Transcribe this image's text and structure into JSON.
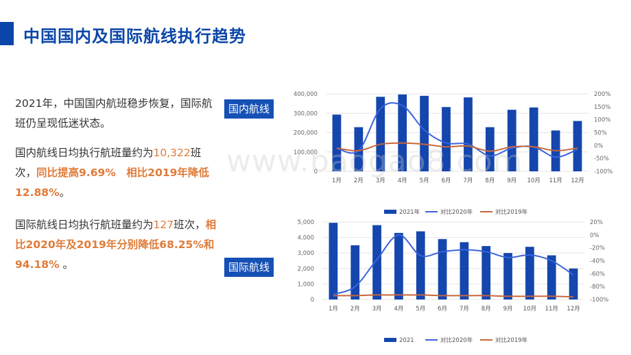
{
  "title": "中国国内及国际航线执行趋势",
  "paragraphs": {
    "p1": "2021年，中国国内航班稳步恢复，国际航班仍呈现低迷状态。",
    "p2_a": "国内航线日均执行航班量约为",
    "p2_num": "10,322",
    "p2_b": "班次，",
    "p2_hl": "同比提高9.69%　相比2019年降低12.88%",
    "p2_end": "。",
    "p3_a": "国际航线日均执行航班量约为",
    "p3_num": "127",
    "p3_b": "班次，",
    "p3_hl": "相比2020年及2019年分别降低68.25%和94.18%",
    "p3_end": " 。"
  },
  "labels": {
    "domestic": "国内航线",
    "international": "国际航线"
  },
  "watermark": "www.baogao8.com",
  "colors": {
    "bar": "#1446ad",
    "line_2020": "#3a63dc",
    "line_2019": "#c8653a",
    "title": "#0b46a8"
  },
  "chart_data": [
    {
      "type": "bar",
      "categories": [
        "1月",
        "2月",
        "3月",
        "4月",
        "5月",
        "6月",
        "7月",
        "8月",
        "9月",
        "10月",
        "11月",
        "12月"
      ],
      "ylim": [
        0,
        400000
      ],
      "yticks": [
        "0",
        "100,000",
        "200,000",
        "300,000",
        "400,000"
      ],
      "y2lim": [
        -100,
        200
      ],
      "y2ticks": [
        "-100%",
        "-50%",
        "0%",
        "50%",
        "100%",
        "150%",
        "200%"
      ],
      "series": [
        {
          "name": "2021年",
          "type": "bar",
          "values": [
            293000,
            228000,
            385000,
            397000,
            390000,
            332000,
            382000,
            228000,
            318000,
            330000,
            211000,
            260000
          ]
        },
        {
          "name": "对比2020年",
          "type": "line",
          "axis": "right",
          "values": [
            -10,
            -20,
            143,
            155,
            60,
            10,
            6,
            -40,
            -10,
            -5,
            -45,
            -15
          ]
        },
        {
          "name": "对比2019年",
          "type": "line",
          "axis": "right",
          "values": [
            -10,
            -20,
            5,
            10,
            5,
            -5,
            -2,
            -22,
            -5,
            -5,
            -20,
            -10
          ]
        }
      ],
      "grid": true,
      "legend": "bottom"
    },
    {
      "type": "bar",
      "categories": [
        "1月",
        "2月",
        "3月",
        "4月",
        "5月",
        "6月",
        "7月",
        "8月",
        "9月",
        "10月",
        "11月",
        "12月"
      ],
      "ylim": [
        0,
        5000
      ],
      "yticks": [
        "0",
        "1,000",
        "2,000",
        "3,000",
        "4,000",
        "5,000"
      ],
      "y2lim": [
        -100,
        20
      ],
      "y2ticks": [
        "-100%",
        "-80%",
        "-60%",
        "-40%",
        "-20%",
        "0%",
        "20%"
      ],
      "series": [
        {
          "name": "2021",
          "type": "bar",
          "values": [
            4950,
            3500,
            4800,
            4300,
            4400,
            3900,
            3700,
            3450,
            3000,
            3400,
            2850,
            2000
          ]
        },
        {
          "name": "对比2020年",
          "type": "line",
          "axis": "right",
          "values": [
            -92,
            -80,
            -38,
            0,
            -32,
            -26,
            -23,
            -26,
            -35,
            -31,
            -40,
            -62
          ]
        },
        {
          "name": "对比2019年",
          "type": "line",
          "axis": "right",
          "values": [
            -94,
            -94,
            -93,
            -93,
            -93,
            -94,
            -94,
            -94,
            -95,
            -95,
            -95,
            -96
          ]
        }
      ],
      "grid": true,
      "legend": "bottom"
    }
  ]
}
